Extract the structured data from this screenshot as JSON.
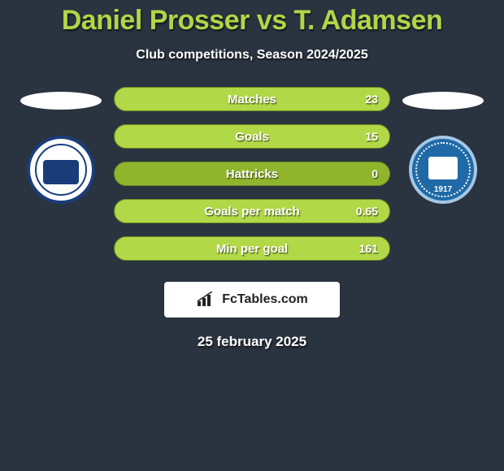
{
  "header": {
    "title": "Daniel Prosser vs T. Adamsen",
    "subtitle": "Club competitions, Season 2024/2025"
  },
  "stats": [
    {
      "label": "Matches",
      "value": "23",
      "fill_pct": 100
    },
    {
      "label": "Goals",
      "value": "15",
      "fill_pct": 100
    },
    {
      "label": "Hattricks",
      "value": "0",
      "fill_pct": 0
    },
    {
      "label": "Goals per match",
      "value": "0.65",
      "fill_pct": 100
    },
    {
      "label": "Min per goal",
      "value": "161",
      "fill_pct": 100
    }
  ],
  "style": {
    "bar_bg": "#8fb52d",
    "bar_fill": "#b1d846",
    "bar_border": "#6d8a23",
    "title_color": "#b0d648",
    "page_bg": "#2a3340",
    "left_badge_border": "#1a3d7a",
    "right_badge_bg": "#1f6aa6",
    "right_badge_year": "1917"
  },
  "footer": {
    "logo_text": "FcTables.com",
    "date": "25 february 2025"
  }
}
